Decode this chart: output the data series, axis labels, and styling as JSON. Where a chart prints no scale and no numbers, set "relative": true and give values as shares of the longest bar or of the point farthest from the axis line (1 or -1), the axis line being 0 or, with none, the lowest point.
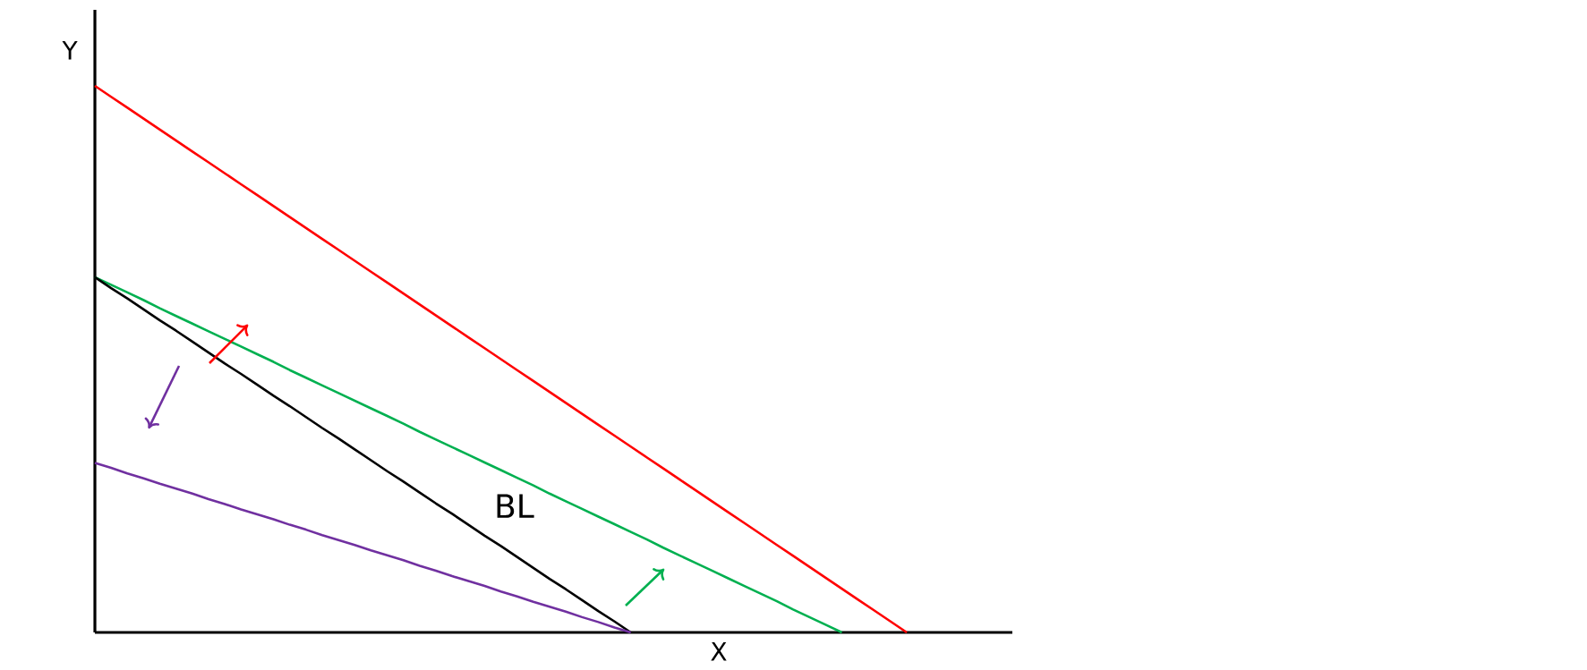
{
  "chart_data": {
    "type": "line",
    "relative": true,
    "xlabel": "X",
    "ylabel": "Y",
    "marker": "none",
    "line_style": "solid",
    "categories": [
      null,
      null,
      null,
      null,
      null,
      null,
      null,
      null,
      null,
      null,
      null,
      null,
      null,
      null,
      null,
      null,
      null,
      null,
      null,
      null,
      null,
      null,
      null,
      null,
      null,
      null,
      null,
      null,
      null,
      null,
      null,
      null,
      null,
      null,
      null,
      null,
      null,
      null,
      null,
      null,
      null,
      null,
      null,
      null,
      null,
      null,
      null,
      null,
      null,
      null,
      null,
      null,
      null,
      null,
      null,
      null,
      null
    ],
    "annotations": [
      "BL"
    ],
    "series": [
      {
        "color": "#ff0000",
        "values": [
          1,
          0.98,
          0.96,
          0.94,
          0.92,
          0.9,
          0.88,
          0.86,
          0.84,
          0.82,
          0.8,
          0.78,
          0.76,
          0.74,
          0.72,
          0.7,
          0.68,
          0.66,
          0.64,
          0.62,
          0.6,
          0.58,
          0.56,
          0.54,
          0.52,
          0.5,
          0.48,
          0.46,
          0.44,
          0.42,
          0.4,
          0.38,
          0.36,
          0.34,
          0.32,
          0.3,
          0.28,
          0.26,
          0.24,
          0.22,
          0.2,
          0.18,
          0.16,
          0.14,
          0.12,
          0.1,
          0.08,
          0.06,
          0.04,
          0.02,
          0,
          null,
          null,
          null,
          null,
          null,
          null
        ]
      },
      {
        "color": "#00b050",
        "values": [
          0.65,
          0.636,
          0.622,
          0.608,
          0.593,
          0.579,
          0.565,
          0.551,
          0.537,
          0.523,
          0.509,
          0.495,
          0.48,
          0.466,
          0.452,
          0.438,
          0.424,
          0.41,
          0.396,
          0.382,
          0.367,
          0.353,
          0.339,
          0.325,
          0.311,
          0.297,
          0.283,
          0.269,
          0.254,
          0.24,
          0.226,
          0.212,
          0.198,
          0.184,
          0.17,
          0.155,
          0.141,
          0.127,
          0.113,
          0.099,
          0.085,
          0.071,
          0.057,
          0.042,
          0.028,
          0.014,
          0,
          null,
          null,
          null,
          null,
          null,
          null,
          null,
          null,
          null,
          null
        ]
      },
      {
        "color": "#000000",
        "values": [
          0.65,
          0.63,
          0.611,
          0.591,
          0.571,
          0.552,
          0.532,
          0.512,
          0.492,
          0.473,
          0.453,
          0.433,
          0.414,
          0.394,
          0.374,
          0.355,
          0.335,
          0.315,
          0.295,
          0.276,
          0.256,
          0.236,
          0.217,
          0.197,
          0.177,
          0.158,
          0.138,
          0.118,
          0.098,
          0.079,
          0.059,
          0.039,
          0.02,
          0,
          null,
          null,
          null,
          null,
          null,
          null,
          null,
          null,
          null,
          null,
          null,
          null,
          null,
          null,
          null,
          null,
          null,
          null,
          null,
          null,
          null,
          null,
          null
        ]
      },
      {
        "color": "#7030a0",
        "values": [
          0.31,
          0.301,
          0.291,
          0.282,
          0.272,
          0.263,
          0.254,
          0.244,
          0.235,
          0.225,
          0.216,
          0.207,
          0.197,
          0.188,
          0.178,
          0.169,
          0.16,
          0.15,
          0.141,
          0.132,
          0.122,
          0.113,
          0.103,
          0.094,
          0.085,
          0.075,
          0.066,
          0.056,
          0.047,
          0.038,
          0.028,
          0.019,
          0.009,
          0,
          null,
          null,
          null,
          null,
          null,
          null,
          null,
          null,
          null,
          null,
          null,
          null,
          null,
          null,
          null,
          null,
          null,
          null,
          null,
          null,
          null,
          null,
          null
        ]
      }
    ]
  }
}
